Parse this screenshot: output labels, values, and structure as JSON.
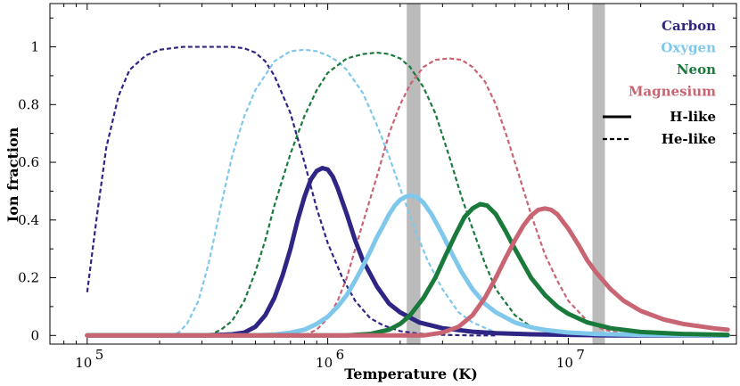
{
  "chart_data": {
    "type": "line",
    "xlabel": "Temperature (K)",
    "ylabel": "Ion fraction",
    "xscale": "log",
    "xlim": [
      70000,
      50000000
    ],
    "ylim": [
      -0.03,
      1.15
    ],
    "yticks": [
      0,
      0.2,
      0.4,
      0.6,
      0.8,
      1
    ],
    "ytick_labels": [
      "0",
      "0.2",
      "0.4",
      "0.6",
      "0.8",
      "1"
    ],
    "xticks": [
      100000,
      1000000,
      10000000
    ],
    "xtick_labels": [
      {
        "base": "10",
        "exp": "5"
      },
      {
        "base": "10",
        "exp": "6"
      },
      {
        "base": "10",
        "exp": "7"
      }
    ],
    "grid": false,
    "shaded_bands": [
      {
        "from": 2130000,
        "to": 2430000,
        "color": "#bbbbbb"
      },
      {
        "from": 12600000,
        "to": 14200000,
        "color": "#bbbbbb"
      }
    ],
    "series": [
      {
        "element": "Carbon",
        "ion": "He-like",
        "color": "#2e2585",
        "style": "dashed",
        "x": [
          100000,
          110000,
          120000,
          135000,
          150000,
          175000,
          200000,
          250000,
          300000,
          350000,
          400000,
          450000,
          500000,
          550000,
          600000,
          700000,
          800000,
          900000,
          1000000,
          1150000,
          1300000,
          1500000,
          1700000,
          2000000,
          2400000,
          3000000,
          4000000,
          5000000
        ],
        "y": [
          0.15,
          0.42,
          0.65,
          0.83,
          0.92,
          0.97,
          0.99,
          1.0,
          1.0,
          1.0,
          1.0,
          0.995,
          0.98,
          0.95,
          0.9,
          0.77,
          0.6,
          0.44,
          0.32,
          0.2,
          0.12,
          0.06,
          0.035,
          0.015,
          0.006,
          0.002,
          0.0,
          0.0
        ]
      },
      {
        "element": "Oxygen",
        "ion": "He-like",
        "color": "#7fc8ec",
        "style": "dashed",
        "x": [
          220000,
          240000,
          260000,
          290000,
          320000,
          360000,
          400000,
          450000,
          500000,
          600000,
          700000,
          800000,
          900000,
          1000000,
          1100000,
          1200000,
          1400000,
          1600000,
          1800000,
          2000000,
          2300000,
          2600000,
          3000000,
          3500000,
          4000000,
          5000000,
          6000000
        ],
        "y": [
          0.0,
          0.01,
          0.04,
          0.12,
          0.25,
          0.45,
          0.62,
          0.76,
          0.85,
          0.95,
          0.985,
          0.99,
          0.985,
          0.97,
          0.95,
          0.92,
          0.84,
          0.73,
          0.62,
          0.51,
          0.37,
          0.26,
          0.16,
          0.08,
          0.045,
          0.01,
          0.003
        ]
      },
      {
        "element": "Neon",
        "ion": "He-like",
        "color": "#1a7a3c",
        "style": "dashed",
        "x": [
          320000,
          360000,
          400000,
          450000,
          500000,
          550000,
          600000,
          700000,
          800000,
          900000,
          1000000,
          1200000,
          1400000,
          1600000,
          1800000,
          2000000,
          2200000,
          2500000,
          2800000,
          3200000,
          3600000,
          4000000,
          4500000,
          5000000,
          6000000,
          7000000,
          8000000,
          10000000
        ],
        "y": [
          0.0,
          0.02,
          0.05,
          0.12,
          0.22,
          0.33,
          0.45,
          0.63,
          0.76,
          0.85,
          0.91,
          0.96,
          0.975,
          0.98,
          0.975,
          0.96,
          0.93,
          0.86,
          0.77,
          0.62,
          0.48,
          0.37,
          0.25,
          0.16,
          0.07,
          0.03,
          0.015,
          0.003
        ]
      },
      {
        "element": "Magnesium",
        "ion": "He-like",
        "color": "#c96473",
        "style": "dashed",
        "x": [
          800000,
          900000,
          1000000,
          1100000,
          1200000,
          1400000,
          1600000,
          1800000,
          2000000,
          2200000,
          2500000,
          2800000,
          3200000,
          3600000,
          4000000,
          4500000,
          5000000,
          5500000,
          6000000,
          7000000,
          8000000,
          9000000,
          10000000,
          12000000,
          14000000,
          17000000,
          20000000
        ],
        "y": [
          0.0,
          0.02,
          0.06,
          0.12,
          0.2,
          0.39,
          0.55,
          0.7,
          0.8,
          0.87,
          0.93,
          0.955,
          0.96,
          0.955,
          0.93,
          0.88,
          0.8,
          0.7,
          0.6,
          0.42,
          0.28,
          0.19,
          0.12,
          0.05,
          0.02,
          0.006,
          0.002
        ]
      },
      {
        "element": "Carbon",
        "ion": "H-like",
        "color": "#2e2585",
        "style": "solid",
        "x": [
          100000,
          300000,
          400000,
          450000,
          500000,
          550000,
          600000,
          650000,
          700000,
          750000,
          800000,
          850000,
          900000,
          950000,
          1000000,
          1050000,
          1100000,
          1200000,
          1300000,
          1400000,
          1600000,
          1800000,
          2000000,
          2400000,
          3000000,
          4000000,
          5000000,
          7000000,
          10000000,
          15000000,
          20000000,
          30000000,
          46000000
        ],
        "y": [
          0.0,
          0.0,
          0.004,
          0.01,
          0.03,
          0.07,
          0.13,
          0.21,
          0.3,
          0.4,
          0.48,
          0.54,
          0.57,
          0.58,
          0.575,
          0.55,
          0.51,
          0.42,
          0.33,
          0.26,
          0.17,
          0.11,
          0.08,
          0.045,
          0.025,
          0.013,
          0.008,
          0.004,
          0.002,
          0.0,
          0.0,
          0.0,
          0.0
        ]
      },
      {
        "element": "Oxygen",
        "ion": "H-like",
        "color": "#7fc8ec",
        "style": "solid",
        "x": [
          100000,
          500000,
          600000,
          700000,
          800000,
          900000,
          1000000,
          1100000,
          1200000,
          1300000,
          1400000,
          1500000,
          1600000,
          1700000,
          1800000,
          1900000,
          2000000,
          2100000,
          2200000,
          2350000,
          2500000,
          2700000,
          3000000,
          3300000,
          3600000,
          4000000,
          4500000,
          5000000,
          6000000,
          7000000,
          8000000,
          10000000,
          13000000,
          20000000,
          46000000
        ],
        "y": [
          0.0,
          0.0,
          0.003,
          0.01,
          0.02,
          0.04,
          0.065,
          0.1,
          0.14,
          0.19,
          0.24,
          0.29,
          0.34,
          0.38,
          0.42,
          0.45,
          0.47,
          0.48,
          0.485,
          0.48,
          0.46,
          0.42,
          0.35,
          0.28,
          0.22,
          0.16,
          0.11,
          0.08,
          0.045,
          0.028,
          0.019,
          0.01,
          0.005,
          0.002,
          0.0
        ]
      },
      {
        "element": "Neon",
        "ion": "H-like",
        "color": "#1a7a3c",
        "style": "solid",
        "x": [
          100000,
          1200000,
          1500000,
          1800000,
          2000000,
          2200000,
          2500000,
          2800000,
          3100000,
          3400000,
          3700000,
          4000000,
          4300000,
          4600000,
          5000000,
          5500000,
          6000000,
          7000000,
          8000000,
          9000000,
          10000000,
          12000000,
          15000000,
          20000000,
          30000000,
          46000000
        ],
        "y": [
          0.0,
          0.0,
          0.005,
          0.02,
          0.04,
          0.07,
          0.13,
          0.2,
          0.28,
          0.35,
          0.41,
          0.44,
          0.455,
          0.45,
          0.42,
          0.36,
          0.3,
          0.2,
          0.14,
          0.1,
          0.075,
          0.045,
          0.025,
          0.012,
          0.005,
          0.002
        ]
      },
      {
        "element": "Magnesium",
        "ion": "H-like",
        "color": "#c96473",
        "style": "solid",
        "x": [
          100000,
          2500000,
          3000000,
          3500000,
          4000000,
          4500000,
          5000000,
          5500000,
          6000000,
          6500000,
          7000000,
          7500000,
          8000000,
          8500000,
          9000000,
          10000000,
          11000000,
          12000000,
          13000000,
          15000000,
          17000000,
          20000000,
          25000000,
          30000000,
          40000000,
          46000000
        ],
        "y": [
          0.0,
          0.0,
          0.01,
          0.03,
          0.07,
          0.13,
          0.2,
          0.27,
          0.33,
          0.38,
          0.415,
          0.435,
          0.44,
          0.435,
          0.42,
          0.37,
          0.315,
          0.26,
          0.22,
          0.16,
          0.12,
          0.085,
          0.055,
          0.04,
          0.025,
          0.02
        ]
      }
    ],
    "legend": {
      "placement": "top-right",
      "elements": [
        {
          "label": "Carbon",
          "color": "#2e2585"
        },
        {
          "label": "Oxygen",
          "color": "#7fc8ec"
        },
        {
          "label": "Neon",
          "color": "#1a7a3c"
        },
        {
          "label": "Magnesium",
          "color": "#c96473"
        }
      ],
      "styles": [
        {
          "label": "H-like",
          "style": "solid"
        },
        {
          "label": "He-like",
          "style": "dashed"
        }
      ]
    }
  }
}
